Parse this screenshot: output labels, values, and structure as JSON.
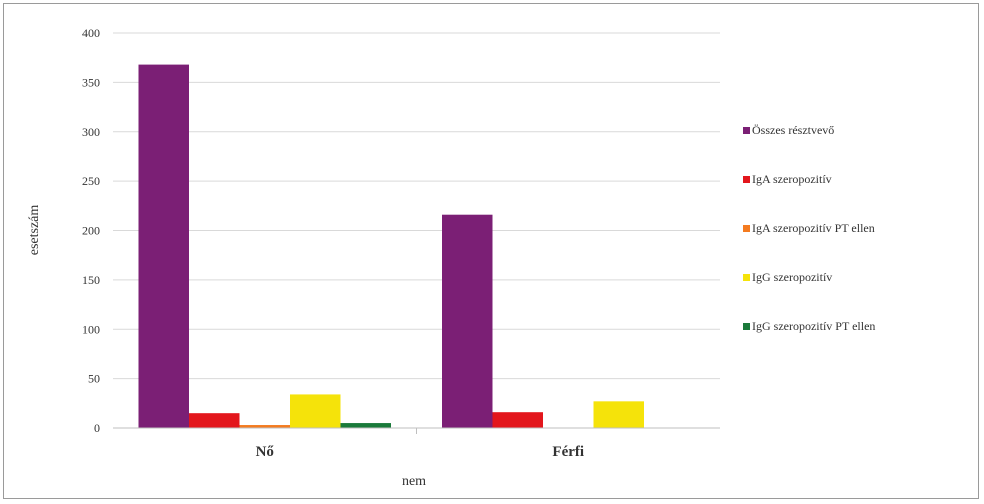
{
  "chart_data": {
    "type": "bar",
    "title": "",
    "xlabel": "nem",
    "ylabel": "esetszám",
    "ylim": [
      0,
      400
    ],
    "yticks": [
      0,
      50,
      100,
      150,
      200,
      250,
      300,
      350,
      400
    ],
    "categories": [
      "Nő",
      "Férfi"
    ],
    "grid": true,
    "legend_position": "right",
    "series": [
      {
        "name": "Összes résztvevő",
        "color": "#7b1f75",
        "values": [
          368,
          216
        ]
      },
      {
        "name": "IgA szeropozitív",
        "color": "#e3161c",
        "values": [
          15,
          16
        ]
      },
      {
        "name": "IgA szeropozitív PT ellen",
        "color": "#f47b20",
        "values": [
          3,
          0
        ]
      },
      {
        "name": "IgG szeropozitív",
        "color": "#f5e30a",
        "values": [
          34,
          27
        ]
      },
      {
        "name": "IgG szeropozitív PT ellen",
        "color": "#1a7a3a",
        "values": [
          5,
          0
        ]
      }
    ]
  }
}
